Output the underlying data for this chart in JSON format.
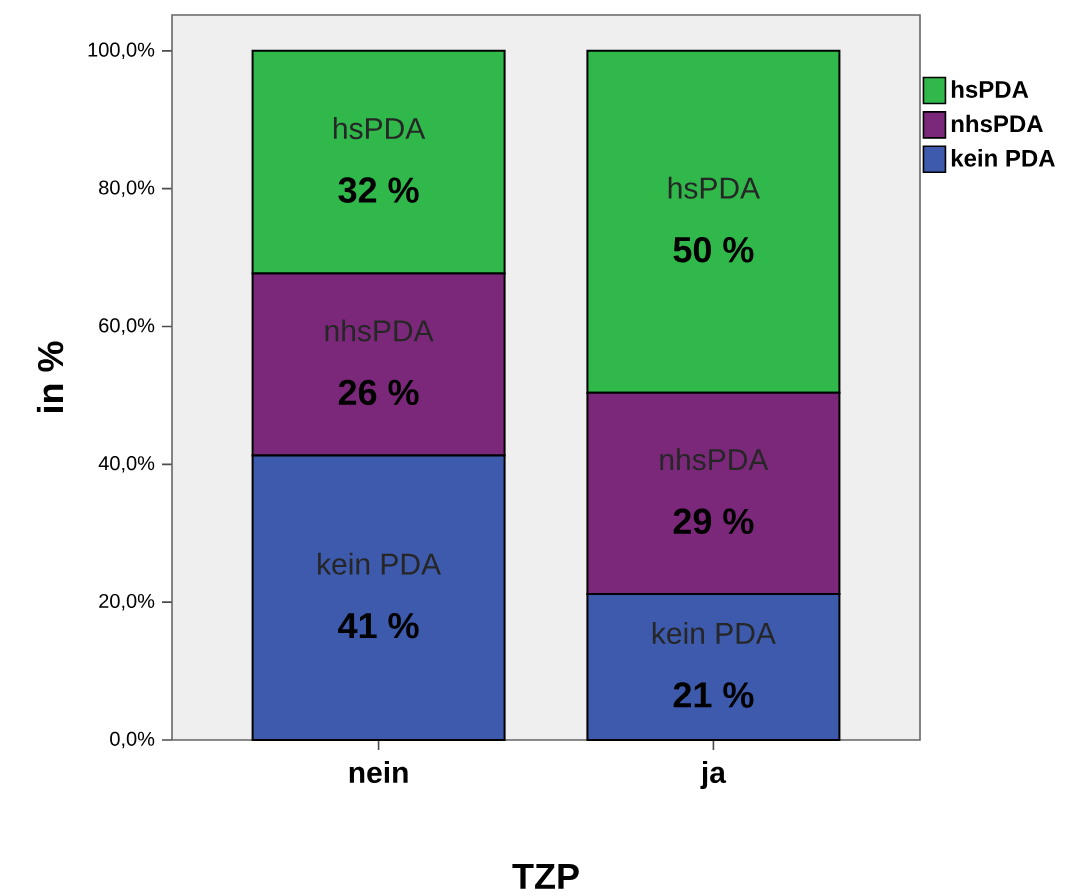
{
  "chart_data": {
    "type": "bar",
    "stacked": true,
    "xlabel": "TZP",
    "ylabel": "in %",
    "categories": [
      "nein",
      "ja"
    ],
    "series": [
      {
        "name": "kein PDA",
        "color": "#3d5aad",
        "values": [
          41.3,
          21.2
        ],
        "value_labels": [
          "41 %",
          "21 %"
        ]
      },
      {
        "name": "nhsPDA",
        "color": "#7b287a",
        "values": [
          26.4,
          29.2
        ],
        "value_labels": [
          "26 %",
          "29 %"
        ]
      },
      {
        "name": "hsPDA",
        "color": "#30b84b",
        "values": [
          32.3,
          49.6
        ],
        "value_labels": [
          "32 %",
          "50 %"
        ]
      }
    ],
    "ylim": [
      0,
      105.2
    ],
    "yticks": [
      {
        "value": 0,
        "label": "0,0%"
      },
      {
        "value": 20,
        "label": "20,0%"
      },
      {
        "value": 40,
        "label": "40,0%"
      },
      {
        "value": 60,
        "label": "60,0%"
      },
      {
        "value": 80,
        "label": "80,0%"
      },
      {
        "value": 100,
        "label": "100,0%"
      }
    ],
    "legend": "top right"
  }
}
